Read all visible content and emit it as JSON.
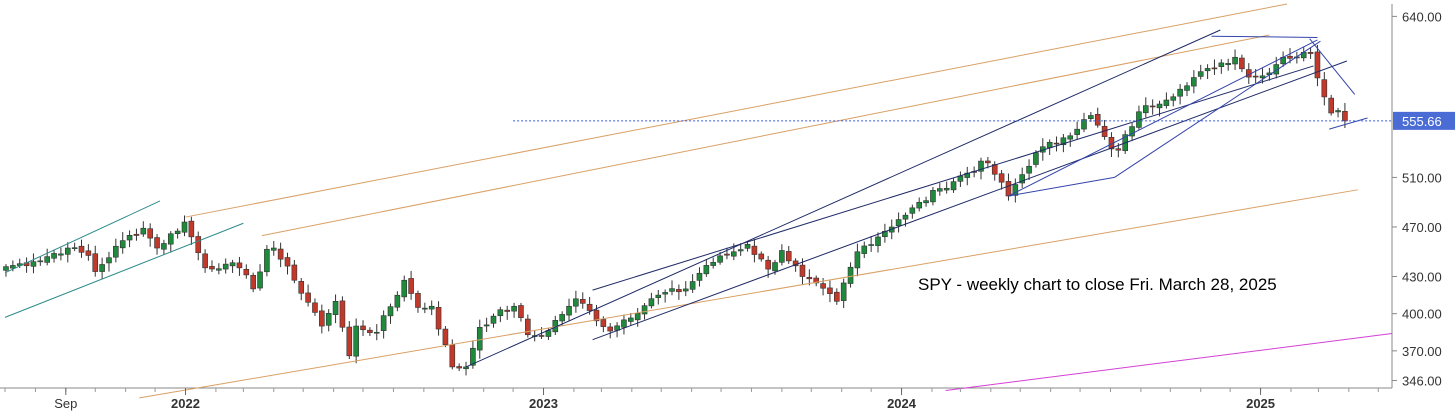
{
  "chart_data": {
    "type": "candlestick",
    "annotation": "SPY - weekly chart to close Fri. March 28, 2025",
    "last_price": 555.66,
    "last_price_label": "555.66",
    "y_ticks": [
      {
        "value": 640,
        "label": "640.00"
      },
      {
        "value": 510,
        "label": "510.00"
      },
      {
        "value": 470,
        "label": "470.00"
      },
      {
        "value": 430,
        "label": "430.00"
      },
      {
        "value": 400,
        "label": "400.00"
      },
      {
        "value": 370,
        "label": "370.00"
      },
      {
        "value": 346,
        "label": "346.00"
      }
    ],
    "x_labels": [
      {
        "label": "Sep",
        "date": "2021-09-01",
        "bold": false
      },
      {
        "label": "2022",
        "date": "2022-01-01",
        "bold": true
      },
      {
        "label": "2023",
        "date": "2023-01-01",
        "bold": true
      },
      {
        "label": "2024",
        "date": "2024-01-01",
        "bold": true
      },
      {
        "label": "2025",
        "date": "2025-01-01",
        "bold": true
      }
    ],
    "x_range": [
      "2021-07-01",
      "2025-05-15"
    ],
    "grid": false,
    "colors": {
      "up": "#1f8a3c",
      "down": "#c0392b",
      "wick": "#333333",
      "price_line": "#3b5bdb",
      "price_tag": "#4a6cd4",
      "orange_line": "#d9a066",
      "navy_line": "#1e2a66",
      "teal_line": "#2e8b8b",
      "magenta_line": "#d43fd4",
      "blue_line": "#3344aa"
    },
    "anchors": [
      [
        "2021-07-02",
        438
      ],
      [
        "2021-07-30",
        442
      ],
      [
        "2021-09-03",
        453
      ],
      [
        "2021-09-24",
        447
      ],
      [
        "2021-10-01",
        434
      ],
      [
        "2021-10-29",
        459
      ],
      [
        "2021-11-19",
        469
      ],
      [
        "2021-12-03",
        453
      ],
      [
        "2021-12-31",
        474
      ],
      [
        "2022-01-21",
        437
      ],
      [
        "2022-02-11",
        440
      ],
      [
        "2022-02-25",
        437
      ],
      [
        "2022-03-11",
        420
      ],
      [
        "2022-03-25",
        452
      ],
      [
        "2022-04-01",
        453
      ],
      [
        "2022-04-22",
        427
      ],
      [
        "2022-05-13",
        401
      ],
      [
        "2022-05-20",
        390
      ],
      [
        "2022-06-03",
        410
      ],
      [
        "2022-06-17",
        366
      ],
      [
        "2022-06-24",
        390
      ],
      [
        "2022-07-15",
        385
      ],
      [
        "2022-08-12",
        427
      ],
      [
        "2022-08-26",
        405
      ],
      [
        "2022-09-09",
        406
      ],
      [
        "2022-09-30",
        357
      ],
      [
        "2022-10-14",
        357
      ],
      [
        "2022-10-28",
        389
      ],
      [
        "2022-11-11",
        398
      ],
      [
        "2022-12-02",
        406
      ],
      [
        "2022-12-16",
        383
      ],
      [
        "2022-12-30",
        382
      ],
      [
        "2023-01-27",
        406
      ],
      [
        "2023-02-03",
        412
      ],
      [
        "2023-03-10",
        386
      ],
      [
        "2023-03-24",
        395
      ],
      [
        "2023-04-28",
        415
      ],
      [
        "2023-05-26",
        420
      ],
      [
        "2023-06-16",
        439
      ],
      [
        "2023-07-28",
        456
      ],
      [
        "2023-08-18",
        436
      ],
      [
        "2023-09-01",
        451
      ],
      [
        "2023-09-22",
        430
      ],
      [
        "2023-10-27",
        410
      ],
      [
        "2023-11-17",
        450
      ],
      [
        "2023-12-29",
        476
      ],
      [
        "2024-02-09",
        501
      ],
      [
        "2024-03-28",
        523
      ],
      [
        "2024-04-19",
        495
      ],
      [
        "2024-05-17",
        530
      ],
      [
        "2024-06-14",
        542
      ],
      [
        "2024-07-12",
        560
      ],
      [
        "2024-08-02",
        533
      ],
      [
        "2024-08-09",
        532
      ],
      [
        "2024-08-30",
        563
      ],
      [
        "2024-10-18",
        584
      ],
      [
        "2024-11-08",
        598
      ],
      [
        "2024-12-06",
        607
      ],
      [
        "2024-12-20",
        591
      ],
      [
        "2025-01-03",
        592
      ],
      [
        "2025-01-24",
        607
      ],
      [
        "2025-02-21",
        610
      ],
      [
        "2025-03-07",
        575
      ],
      [
        "2025-03-14",
        562
      ],
      [
        "2025-03-21",
        564
      ],
      [
        "2025-03-28",
        555.66
      ]
    ],
    "trendlines": [
      {
        "color": "orange",
        "from": [
          "2022-01-01",
          478
        ],
        "to": [
          "2025-01-28",
          650
        ]
      },
      {
        "color": "orange",
        "from": [
          "2022-03-20",
          463
        ],
        "to": [
          "2025-01-10",
          625
        ]
      },
      {
        "color": "orange",
        "from": [
          "2021-11-15",
          332
        ],
        "to": [
          "2025-04-10",
          500
        ]
      },
      {
        "color": "navy",
        "from": [
          "2022-10-14",
          357
        ],
        "to": [
          "2024-11-21",
          629
        ]
      },
      {
        "color": "navy",
        "from": [
          "2023-02-20",
          419
        ],
        "to": [
          "2025-02-24",
          600
        ]
      },
      {
        "color": "navy",
        "from": [
          "2023-02-20",
          379
        ],
        "to": [
          "2025-03-30",
          604
        ]
      },
      {
        "color": "teal",
        "from": [
          "2021-07-01",
          433
        ],
        "to": [
          "2021-12-06",
          491
        ]
      },
      {
        "color": "teal",
        "from": [
          "2021-07-01",
          397
        ],
        "to": [
          "2022-03-01",
          473
        ]
      },
      {
        "color": "magenta",
        "from": [
          "2024-02-15",
          338
        ],
        "to": [
          "2025-05-15",
          384
        ]
      },
      {
        "color": "blue",
        "from": [
          "2024-04-19",
          495
        ],
        "to": [
          "2025-02-28",
          621
        ]
      },
      {
        "color": "blue",
        "from": [
          "2024-04-19",
          495
        ],
        "to": [
          "2024-08-05",
          510
        ]
      },
      {
        "color": "blue",
        "from": [
          "2024-08-05",
          510
        ],
        "to": [
          "2025-03-03",
          620
        ]
      },
      {
        "color": "blue",
        "from": [
          "2025-03-12",
          549
        ],
        "to": [
          "2025-04-20",
          558
        ]
      },
      {
        "color": "blue",
        "from": [
          "2024-11-12",
          624
        ],
        "to": [
          "2025-02-28",
          623
        ]
      },
      {
        "color": "blue",
        "from": [
          "2025-02-20",
          622
        ],
        "to": [
          "2025-04-07",
          577
        ]
      }
    ]
  }
}
